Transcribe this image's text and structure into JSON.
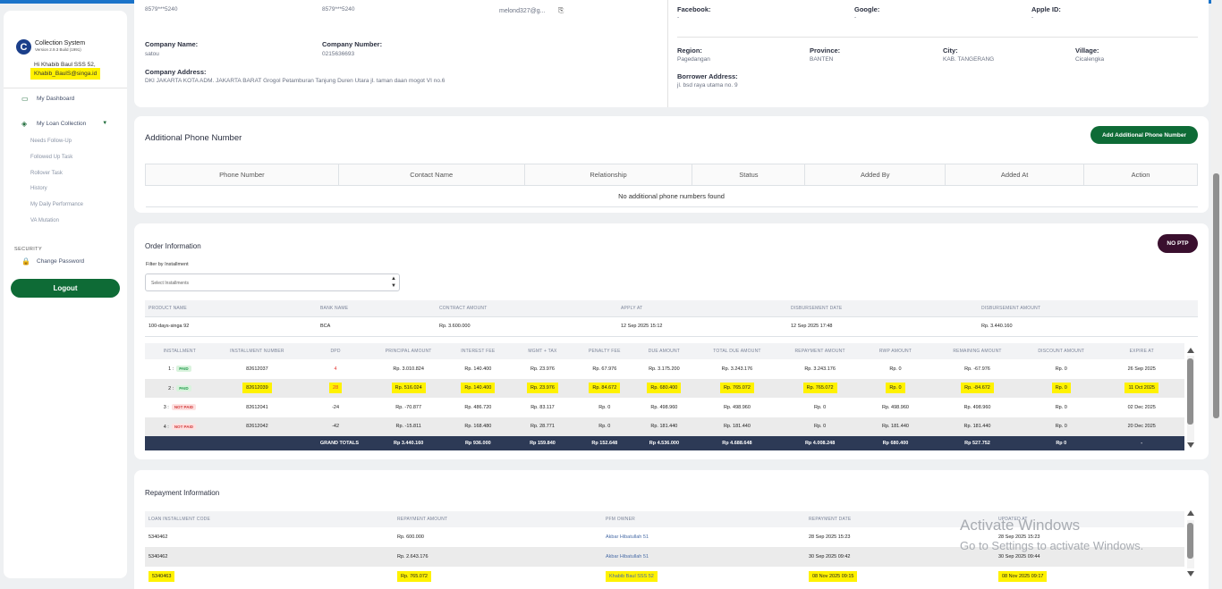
{
  "sidebar": {
    "app_name": "Collection System",
    "version": "Version 2.9.3 Build (1991)",
    "greeting": "Hi Khabib Baul SSS 52,",
    "email": "Khabib_BaulS@singa.id",
    "nav": {
      "dashboard": "My Dashboard",
      "loan_collection": "My Loan Collection",
      "subs": [
        "Needs Follow-Up",
        "Followed Up Task",
        "Rollover Task",
        "History",
        "My Daily Performance",
        "VA Mutation"
      ]
    },
    "security_heading": "SECURITY",
    "change_password": "Change Password",
    "logout": "Logout"
  },
  "profile": {
    "phone1": "8579***5240",
    "phone2": "8579***5240",
    "email_masked": "melond327@g...",
    "facebook_label": "Facebook:",
    "facebook_value": "-",
    "google_label": "Google:",
    "google_value": "-",
    "appleid_label": "Apple ID:",
    "appleid_value": "-",
    "company_name_label": "Company Name:",
    "company_name": "satou",
    "company_number_label": "Company Number:",
    "company_number": "0215636693",
    "company_address_label": "Company Address:",
    "company_address": "DKI JAKARTA KOTA ADM. JAKARTA BARAT Grogol Petamburan Tanjung Duren Utara jl. taman daan mogot VI no.6",
    "region_label": "Region:",
    "region": "Pagedangan",
    "province_label": "Province:",
    "province": "BANTEN",
    "city_label": "City:",
    "city": "KAB. TANGERANG",
    "village_label": "Village:",
    "village": "Cicalengka",
    "borrower_address_label": "Borrower Address:",
    "borrower_address": "jl. bsd raya utama no. 9"
  },
  "phones": {
    "title": "Additional Phone Number",
    "add_button": "Add Additional Phone Number",
    "columns": [
      "Phone Number",
      "Contact Name",
      "Relationship",
      "Status",
      "Added By",
      "Added At",
      "Action"
    ],
    "empty": "No additional phone numbers found"
  },
  "order": {
    "title": "Order Information",
    "ptp_badge": "NO PTP",
    "filter_label": "Filter by Installment",
    "filter_placeholder": "Select Installments",
    "headers": [
      "PRODUCT NAME",
      "BANK NAME",
      "CONTRACT AMOUNT",
      "APPLY AT",
      "DISBURSEMENT DATE",
      "DISBURSEMENT AMOUNT"
    ],
    "row": [
      "100-days-singa 92",
      "BCA",
      "Rp. 3.600.000",
      "12 Sep 2025 15:12",
      "12 Sep 2025 17:48",
      "Rp. 3.440.160"
    ]
  },
  "installments": {
    "headers": [
      "INSTALLMENT",
      "INSTALLMENT NUMBER",
      "DPD",
      "PRINCIPAL AMOUNT",
      "INTEREST FEE",
      "MGMT + TAX",
      "PENALTY FEE",
      "DUE AMOUNT",
      "TOTAL DUE AMOUNT",
      "REPAYMENT AMOUNT",
      "RWP AMOUNT",
      "REMAINING AMOUNT",
      "DISCOUNT AMOUNT",
      "EXPIRE AT"
    ],
    "rows": [
      {
        "no": "1 :",
        "status": "PAID",
        "cells": [
          "82612037",
          "4",
          "Rp. 3.010.824",
          "Rp. 140.400",
          "Rp. 23.976",
          "Rp. 67.976",
          "Rp. 3.175.200",
          "Rp. 3.243.176",
          "Rp. 3.243.176",
          "Rp. 0",
          "Rp. -67.976",
          "Rp. 0",
          "26 Sep 2025"
        ]
      },
      {
        "no": "2 :",
        "status": "PAID",
        "cells": [
          "82612039",
          "28",
          "Rp. 516.024",
          "Rp. 140.400",
          "Rp. 23.976",
          "Rp. 84.672",
          "Rp. 680.400",
          "Rp. 765.072",
          "Rp. 765.072",
          "Rp. 0",
          "Rp. -84.672",
          "Rp. 0",
          "11 Oct 2025"
        ]
      },
      {
        "no": "3 :",
        "status": "NOT PAID",
        "cells": [
          "82612041",
          "-24",
          "Rp. -70.877",
          "Rp. 486.720",
          "Rp. 83.117",
          "Rp. 0",
          "Rp. 498.960",
          "Rp. 498.960",
          "Rp. 0",
          "Rp. 498.960",
          "Rp. 498.960",
          "Rp. 0",
          "02 Dec 2025"
        ]
      },
      {
        "no": "4 :",
        "status": "NOT PAID",
        "cells": [
          "82612042",
          "-42",
          "Rp. -15.811",
          "Rp. 168.480",
          "Rp. 28.771",
          "Rp. 0",
          "Rp. 181.440",
          "Rp. 181.440",
          "Rp. 0",
          "Rp. 181.440",
          "Rp. 181.440",
          "Rp. 0",
          "20 Dec 2025"
        ]
      }
    ],
    "totals_label": "GRAND TOTALS",
    "totals": [
      "Rp 3.440.160",
      "Rp 936.000",
      "Rp 159.840",
      "Rp 152.648",
      "Rp 4.536.000",
      "Rp 4.688.648",
      "Rp 4.008.248",
      "Rp 680.400",
      "Rp 527.752",
      "Rp 0",
      "-"
    ]
  },
  "repayment": {
    "title": "Repayment Information",
    "headers": [
      "LOAN INSTALLMENT CODE",
      "REPAYMENT AMOUNT",
      "PFM OWNER",
      "REPAYMENT DATE",
      "UPDATED AT"
    ],
    "rows": [
      [
        "5340462",
        "Rp. 600.000",
        "Akbar Hibatullah 51",
        "28 Sep 2025 15:23",
        "28 Sep 2025 15:23"
      ],
      [
        "5340462",
        "Rp. 2.643.176",
        "Akbar Hibatullah 51",
        "30 Sep 2025 09:42",
        "30 Sep 2025 09:44"
      ],
      [
        "5340463",
        "Rp. 765.072",
        "Khabib Baul SSS 52",
        "08 Nov 2025 09:15",
        "08 Nov 2025 09:17"
      ]
    ]
  },
  "watermark": {
    "line1": "Activate Windows",
    "line2": "Go to Settings to activate Windows."
  },
  "colors": {
    "accent": "#0e6b36",
    "ptp": "#3a0f2e",
    "highlight": "#fff200",
    "totals": "#2d3a56"
  }
}
